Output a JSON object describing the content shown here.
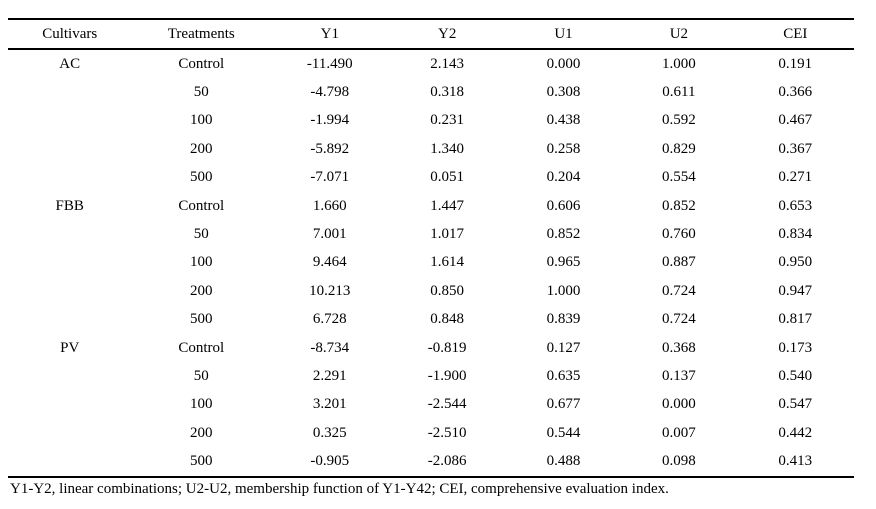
{
  "table": {
    "columns": [
      "Cultivars",
      "Treatments",
      "Y1",
      "Y2",
      "U1",
      "U2",
      "CEI"
    ],
    "rows": [
      [
        "AC",
        "Control",
        "-11.490",
        "2.143",
        "0.000",
        "1.000",
        "0.191"
      ],
      [
        "",
        "50",
        "-4.798",
        "0.318",
        "0.308",
        "0.611",
        "0.366"
      ],
      [
        "",
        "100",
        "-1.994",
        "0.231",
        "0.438",
        "0.592",
        "0.467"
      ],
      [
        "",
        "200",
        "-5.892",
        "1.340",
        "0.258",
        "0.829",
        "0.367"
      ],
      [
        "",
        "500",
        "-7.071",
        "0.051",
        "0.204",
        "0.554",
        "0.271"
      ],
      [
        "FBB",
        "Control",
        "1.660",
        "1.447",
        "0.606",
        "0.852",
        "0.653"
      ],
      [
        "",
        "50",
        "7.001",
        "1.017",
        "0.852",
        "0.760",
        "0.834"
      ],
      [
        "",
        "100",
        "9.464",
        "1.614",
        "0.965",
        "0.887",
        "0.950"
      ],
      [
        "",
        "200",
        "10.213",
        "0.850",
        "1.000",
        "0.724",
        "0.947"
      ],
      [
        "",
        "500",
        "6.728",
        "0.848",
        "0.839",
        "0.724",
        "0.817"
      ],
      [
        "PV",
        "Control",
        "-8.734",
        "-0.819",
        "0.127",
        "0.368",
        "0.173"
      ],
      [
        "",
        "50",
        "2.291",
        "-1.900",
        "0.635",
        "0.137",
        "0.540"
      ],
      [
        "",
        "100",
        "3.201",
        "-2.544",
        "0.677",
        "0.000",
        "0.547"
      ],
      [
        "",
        "200",
        "0.325",
        "-2.510",
        "0.544",
        "0.007",
        "0.442"
      ],
      [
        "",
        "500",
        "-0.905",
        "-2.086",
        "0.488",
        "0.098",
        "0.413"
      ]
    ],
    "footnote": "Y1-Y2, linear combinations; U2-U2, membership function of Y1-Y42; CEI, comprehensive evaluation index."
  }
}
